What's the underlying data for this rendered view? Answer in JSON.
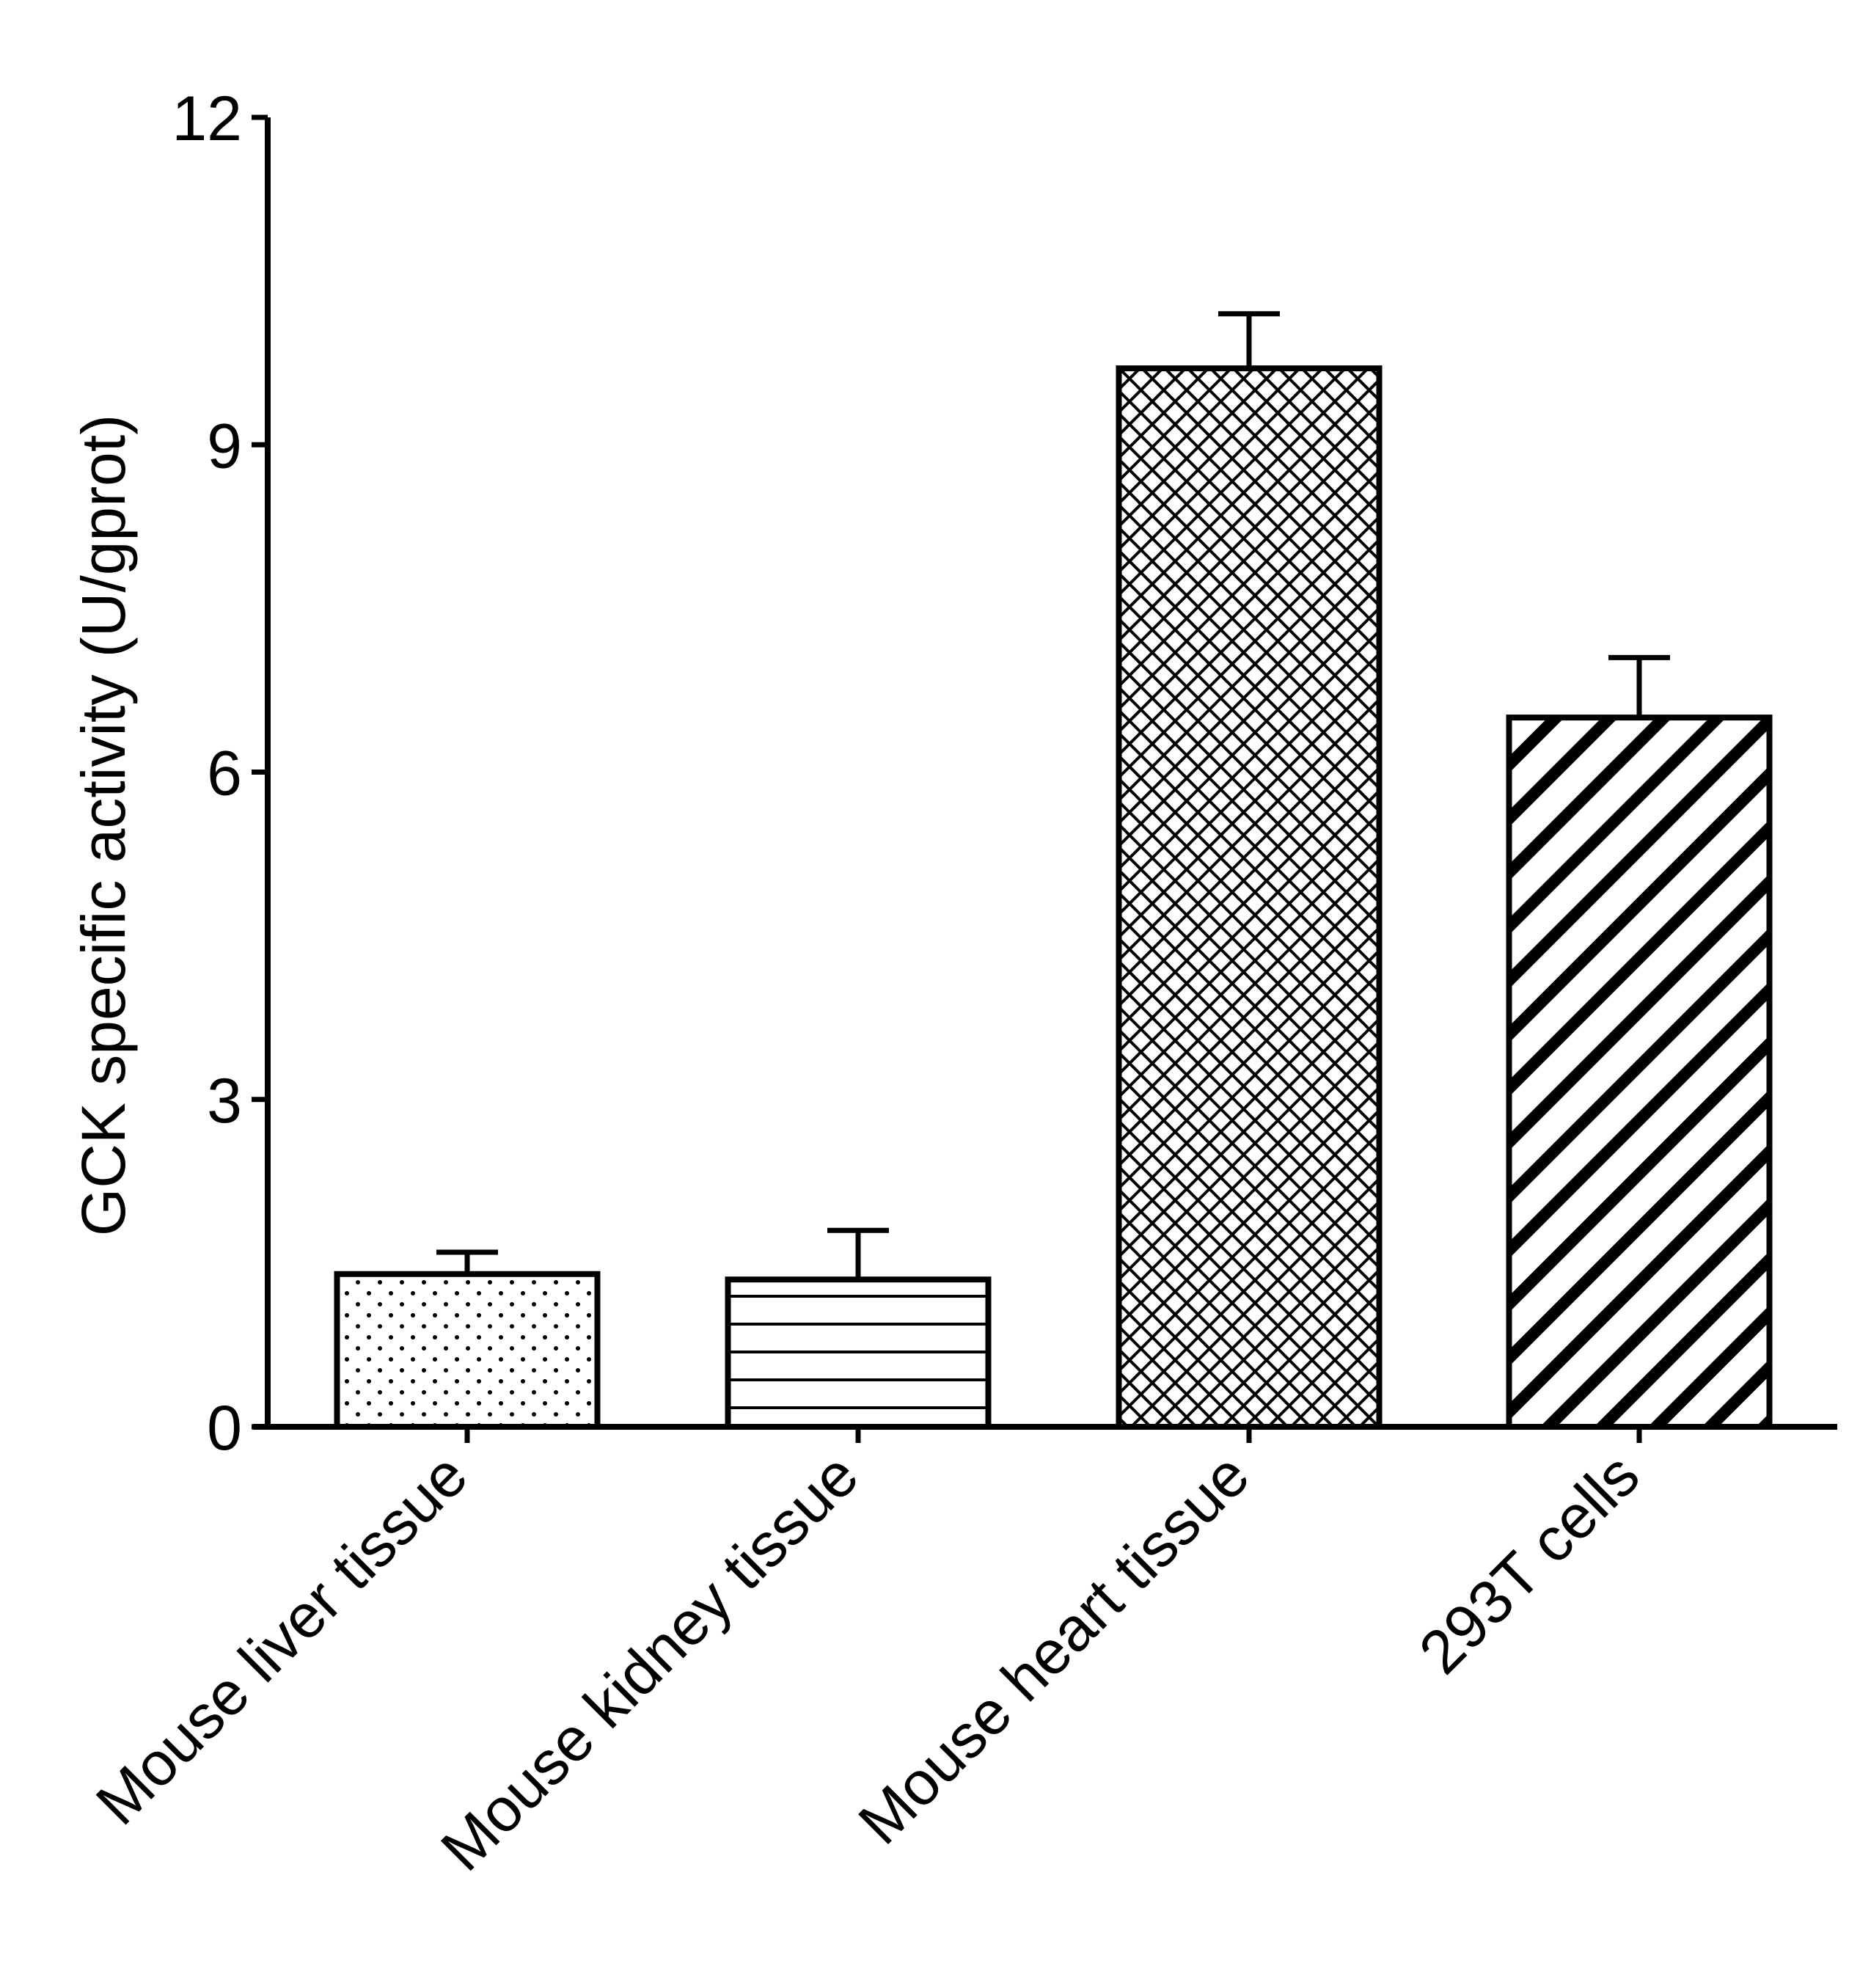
{
  "chart_data": {
    "type": "bar",
    "title": "",
    "xlabel": "",
    "ylabel": "GCK specific activity (U/gprot)",
    "categories": [
      "Mouse liver tissue",
      "Mouse kidney tissue",
      "Mouse heart tissue",
      "293T cells"
    ],
    "values": [
      1.4,
      1.35,
      9.7,
      6.5
    ],
    "errors": [
      0.2,
      0.45,
      0.5,
      0.55
    ],
    "patterns": [
      "dots",
      "horizontal-lines",
      "crosshatch",
      "diagonal-stripes"
    ],
    "ylim": [
      0,
      12
    ],
    "yticks": [
      0,
      3,
      6,
      9,
      12
    ],
    "grid": false,
    "legend": "none",
    "colors": {
      "stroke": "#000000",
      "fill": "#ffffff"
    }
  }
}
